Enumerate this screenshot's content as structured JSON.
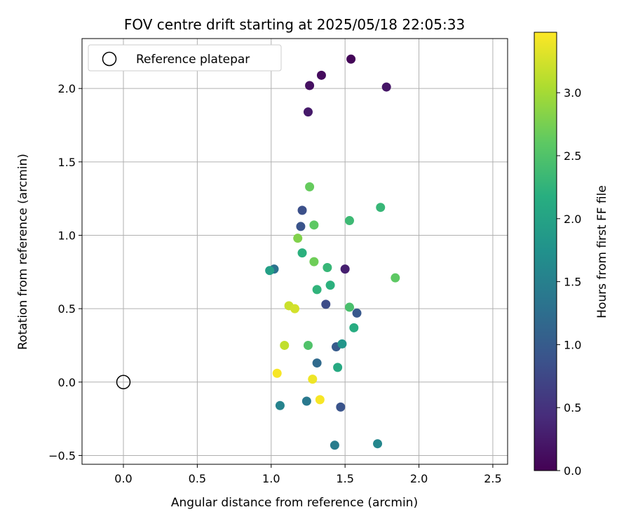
{
  "chart_data": {
    "type": "scatter",
    "title": "FOV centre drift starting at 2025/05/18 22:05:33",
    "xlabel": "Angular distance from reference (arcmin)",
    "ylabel": "Rotation from reference (arcmin)",
    "xlim": [
      -0.28,
      2.6
    ],
    "ylim": [
      -0.56,
      2.34
    ],
    "xticks": [
      "0.0",
      "0.5",
      "1.0",
      "1.5",
      "2.0",
      "2.5"
    ],
    "yticks": [
      "−0.5",
      "0.0",
      "0.5",
      "1.0",
      "1.5",
      "2.0"
    ],
    "grid": true,
    "legend": {
      "position": "top-left",
      "entries": [
        "Reference platepar"
      ]
    },
    "reference_point": {
      "x": 0.0,
      "y": 0.0
    },
    "colorbar": {
      "label": "Hours from first FF file",
      "colormap": "viridis",
      "range": [
        0.0,
        3.48
      ],
      "ticks": [
        "0.0",
        "0.5",
        "1.0",
        "1.5",
        "2.0",
        "2.5",
        "3.0"
      ]
    },
    "points": [
      {
        "x": 1.54,
        "y": 2.2,
        "h": 0.05
      },
      {
        "x": 1.34,
        "y": 2.09,
        "h": 0.1
      },
      {
        "x": 1.26,
        "y": 2.02,
        "h": 0.15
      },
      {
        "x": 1.78,
        "y": 2.01,
        "h": 0.2
      },
      {
        "x": 1.25,
        "y": 1.84,
        "h": 0.25
      },
      {
        "x": 1.5,
        "y": 0.77,
        "h": 0.3
      },
      {
        "x": 1.37,
        "y": 0.53,
        "h": 0.8
      },
      {
        "x": 1.21,
        "y": 1.17,
        "h": 0.85
      },
      {
        "x": 1.2,
        "y": 1.06,
        "h": 0.9
      },
      {
        "x": 1.47,
        "y": -0.17,
        "h": 0.9
      },
      {
        "x": 1.58,
        "y": 0.47,
        "h": 0.95
      },
      {
        "x": 1.44,
        "y": 0.24,
        "h": 1.0
      },
      {
        "x": 1.31,
        "y": 0.13,
        "h": 1.2
      },
      {
        "x": 1.02,
        "y": 0.77,
        "h": 1.3
      },
      {
        "x": 1.24,
        "y": -0.13,
        "h": 1.4
      },
      {
        "x": 1.43,
        "y": -0.43,
        "h": 1.45
      },
      {
        "x": 1.06,
        "y": -0.16,
        "h": 1.55
      },
      {
        "x": 1.72,
        "y": -0.42,
        "h": 1.6
      },
      {
        "x": 1.48,
        "y": 0.26,
        "h": 1.8
      },
      {
        "x": 0.99,
        "y": 0.76,
        "h": 1.95
      },
      {
        "x": 1.45,
        "y": 0.1,
        "h": 2.1
      },
      {
        "x": 1.56,
        "y": 0.37,
        "h": 2.15
      },
      {
        "x": 1.21,
        "y": 0.88,
        "h": 2.2
      },
      {
        "x": 1.4,
        "y": 0.66,
        "h": 2.2
      },
      {
        "x": 1.31,
        "y": 0.63,
        "h": 2.25
      },
      {
        "x": 1.38,
        "y": 0.78,
        "h": 2.3
      },
      {
        "x": 1.53,
        "y": 1.1,
        "h": 2.35
      },
      {
        "x": 1.74,
        "y": 1.19,
        "h": 2.3
      },
      {
        "x": 1.53,
        "y": 0.51,
        "h": 2.45
      },
      {
        "x": 1.25,
        "y": 0.25,
        "h": 2.5
      },
      {
        "x": 1.84,
        "y": 0.71,
        "h": 2.6
      },
      {
        "x": 1.29,
        "y": 1.07,
        "h": 2.6
      },
      {
        "x": 1.26,
        "y": 1.33,
        "h": 2.65
      },
      {
        "x": 1.29,
        "y": 0.82,
        "h": 2.7
      },
      {
        "x": 1.18,
        "y": 0.98,
        "h": 2.8
      },
      {
        "x": 1.09,
        "y": 0.25,
        "h": 3.15
      },
      {
        "x": 1.12,
        "y": 0.52,
        "h": 3.2
      },
      {
        "x": 1.16,
        "y": 0.5,
        "h": 3.25
      },
      {
        "x": 1.04,
        "y": 0.06,
        "h": 3.45
      },
      {
        "x": 1.28,
        "y": 0.02,
        "h": 3.4
      },
      {
        "x": 1.33,
        "y": -0.12,
        "h": 3.45
      }
    ]
  }
}
